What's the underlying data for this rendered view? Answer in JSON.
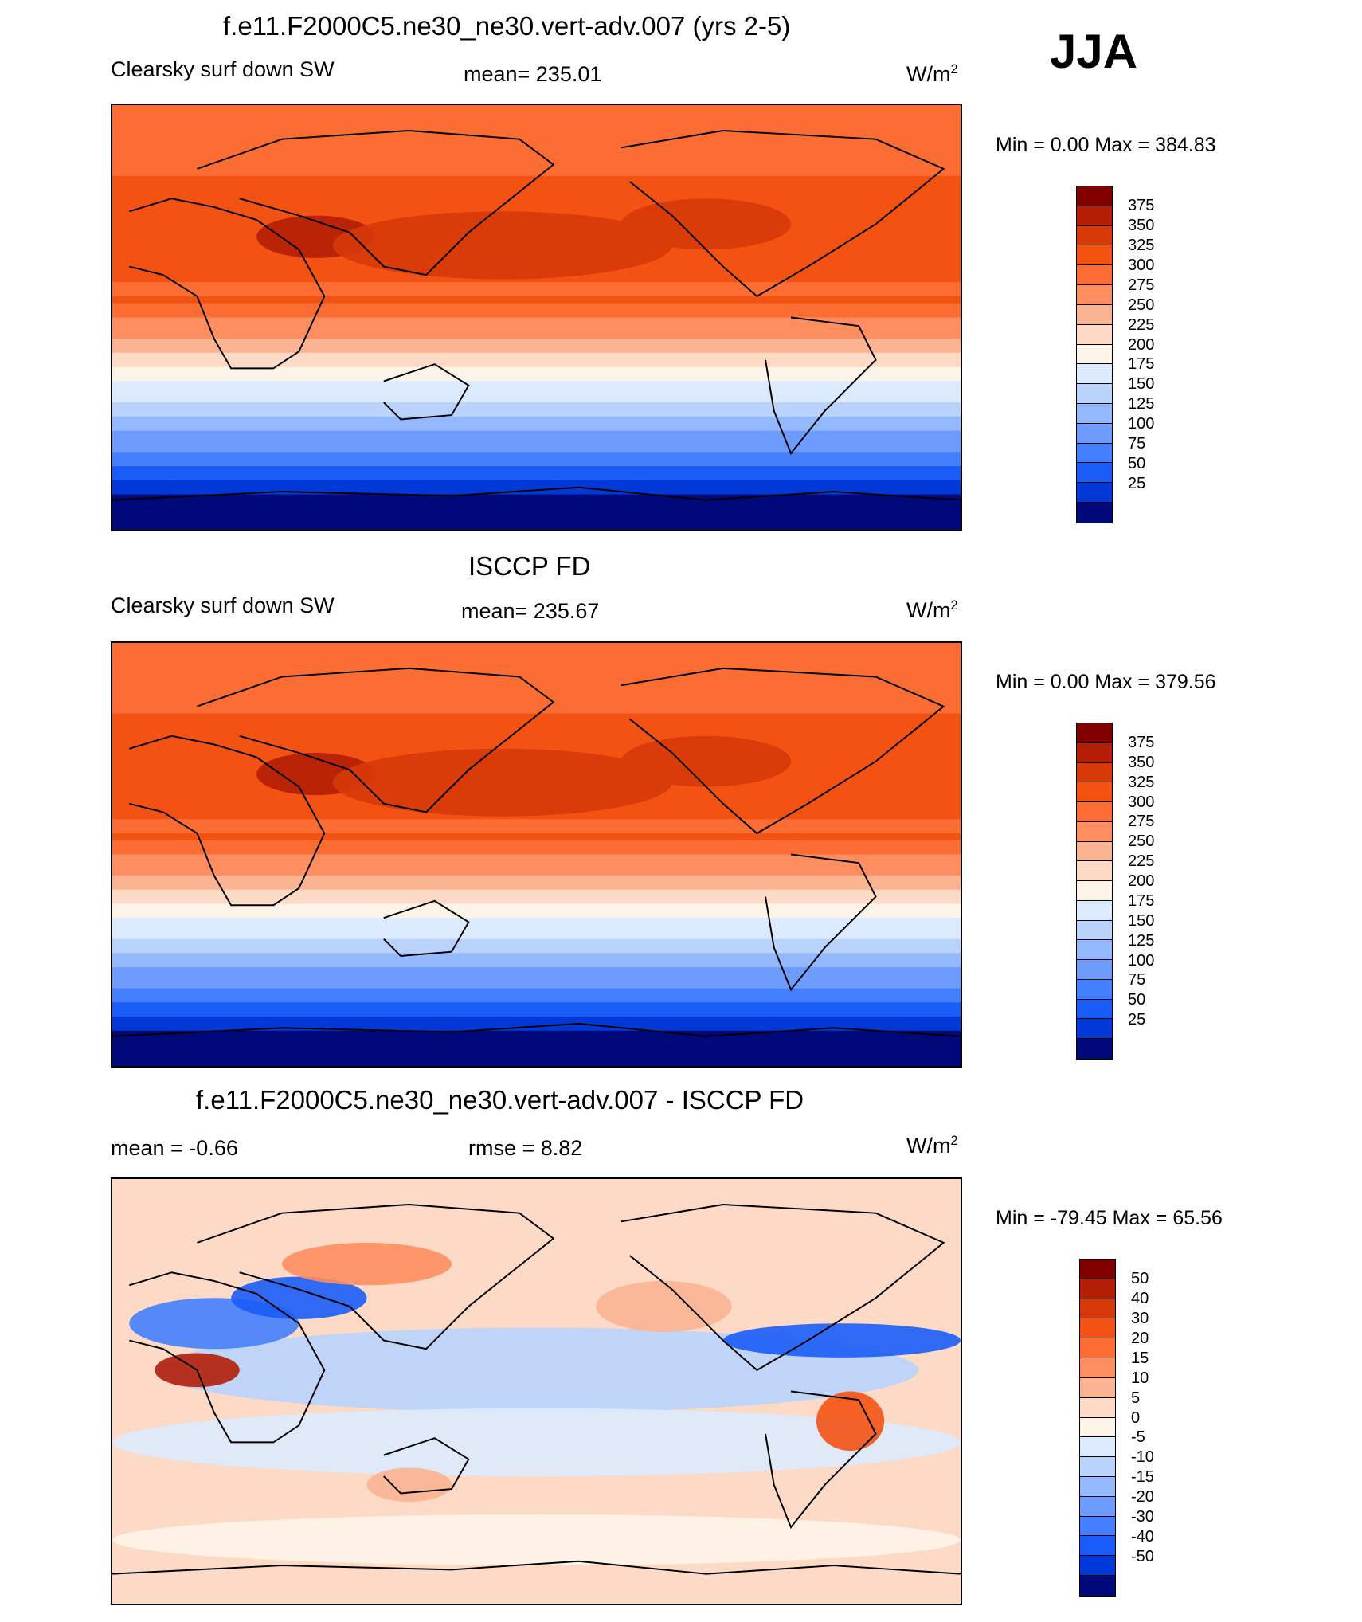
{
  "season": "JJA",
  "units_base": "W/m",
  "units_exp": "2",
  "panels": [
    {
      "title": "f.e11.F2000C5.ne30_ne30.vert-adv.007 (yrs 2-5)",
      "left_label": "Clearsky surf down SW",
      "center_label": "mean= 235.01",
      "minmax": "Min =   0.00 Max = 384.83",
      "scale": "abs",
      "seed": 1
    },
    {
      "title": "ISCCP FD",
      "left_label": "Clearsky surf down SW",
      "center_label": "mean= 235.67",
      "minmax": "Min =   0.00 Max = 379.56",
      "scale": "abs",
      "seed": 2
    },
    {
      "title": "f.e11.F2000C5.ne30_ne30.vert-adv.007 - ISCCP FD",
      "left_label": "mean =  -0.66",
      "center_label": "rmse =   8.82",
      "minmax": "Min = -79.45 Max =  65.56",
      "scale": "diff",
      "seed": 3
    }
  ],
  "colorbars": {
    "abs": {
      "ticks": [
        "375",
        "350",
        "325",
        "300",
        "275",
        "250",
        "225",
        "200",
        "175",
        "150",
        "125",
        "100",
        "75",
        "50",
        "25"
      ],
      "colors": [
        "#800000",
        "#b41e05",
        "#d73a09",
        "#f45213",
        "#fc6d33",
        "#fe8e60",
        "#fbb492",
        "#fddac5",
        "#fdf4e8",
        "#dbeafc",
        "#b9d3fd",
        "#94b8fe",
        "#6d9cfe",
        "#447ffd",
        "#1a5cf7",
        "#0039d8",
        "#00097a"
      ]
    },
    "diff": {
      "ticks": [
        "50",
        "40",
        "30",
        "20",
        "15",
        "10",
        "5",
        "0",
        "-5",
        "-10",
        "-15",
        "-20",
        "-30",
        "-40",
        "-50"
      ],
      "colors": [
        "#800000",
        "#b41e05",
        "#d73a09",
        "#f45213",
        "#fc6d33",
        "#fe8e60",
        "#fbb492",
        "#fddac5",
        "#fdf4e8",
        "#dbeafc",
        "#b9d3fd",
        "#94b8fe",
        "#6d9cfe",
        "#447ffd",
        "#1a5cf7",
        "#0039d8",
        "#00097a"
      ]
    }
  },
  "chart_data": [
    {
      "type": "heatmap",
      "title": "f.e11.F2000C5.ne30_ne30.vert-adv.007 (yrs 2-5)",
      "variable": "Clearsky surf down SW",
      "units": "W/m2",
      "mean": 235.01,
      "min": 0.0,
      "max": 384.83,
      "levels": [
        25,
        50,
        75,
        100,
        125,
        150,
        175,
        200,
        225,
        250,
        275,
        300,
        325,
        350,
        375
      ]
    },
    {
      "type": "heatmap",
      "title": "ISCCP FD",
      "variable": "Clearsky surf down SW",
      "units": "W/m2",
      "mean": 235.67,
      "min": 0.0,
      "max": 379.56,
      "levels": [
        25,
        50,
        75,
        100,
        125,
        150,
        175,
        200,
        225,
        250,
        275,
        300,
        325,
        350,
        375
      ]
    },
    {
      "type": "heatmap",
      "title": "f.e11.F2000C5.ne30_ne30.vert-adv.007 - ISCCP FD",
      "units": "W/m2",
      "mean": -0.66,
      "rmse": 8.82,
      "min": -79.45,
      "max": 65.56,
      "levels": [
        -50,
        -40,
        -30,
        -20,
        -15,
        -10,
        -5,
        0,
        5,
        10,
        15,
        20,
        30,
        40,
        50
      ]
    }
  ]
}
